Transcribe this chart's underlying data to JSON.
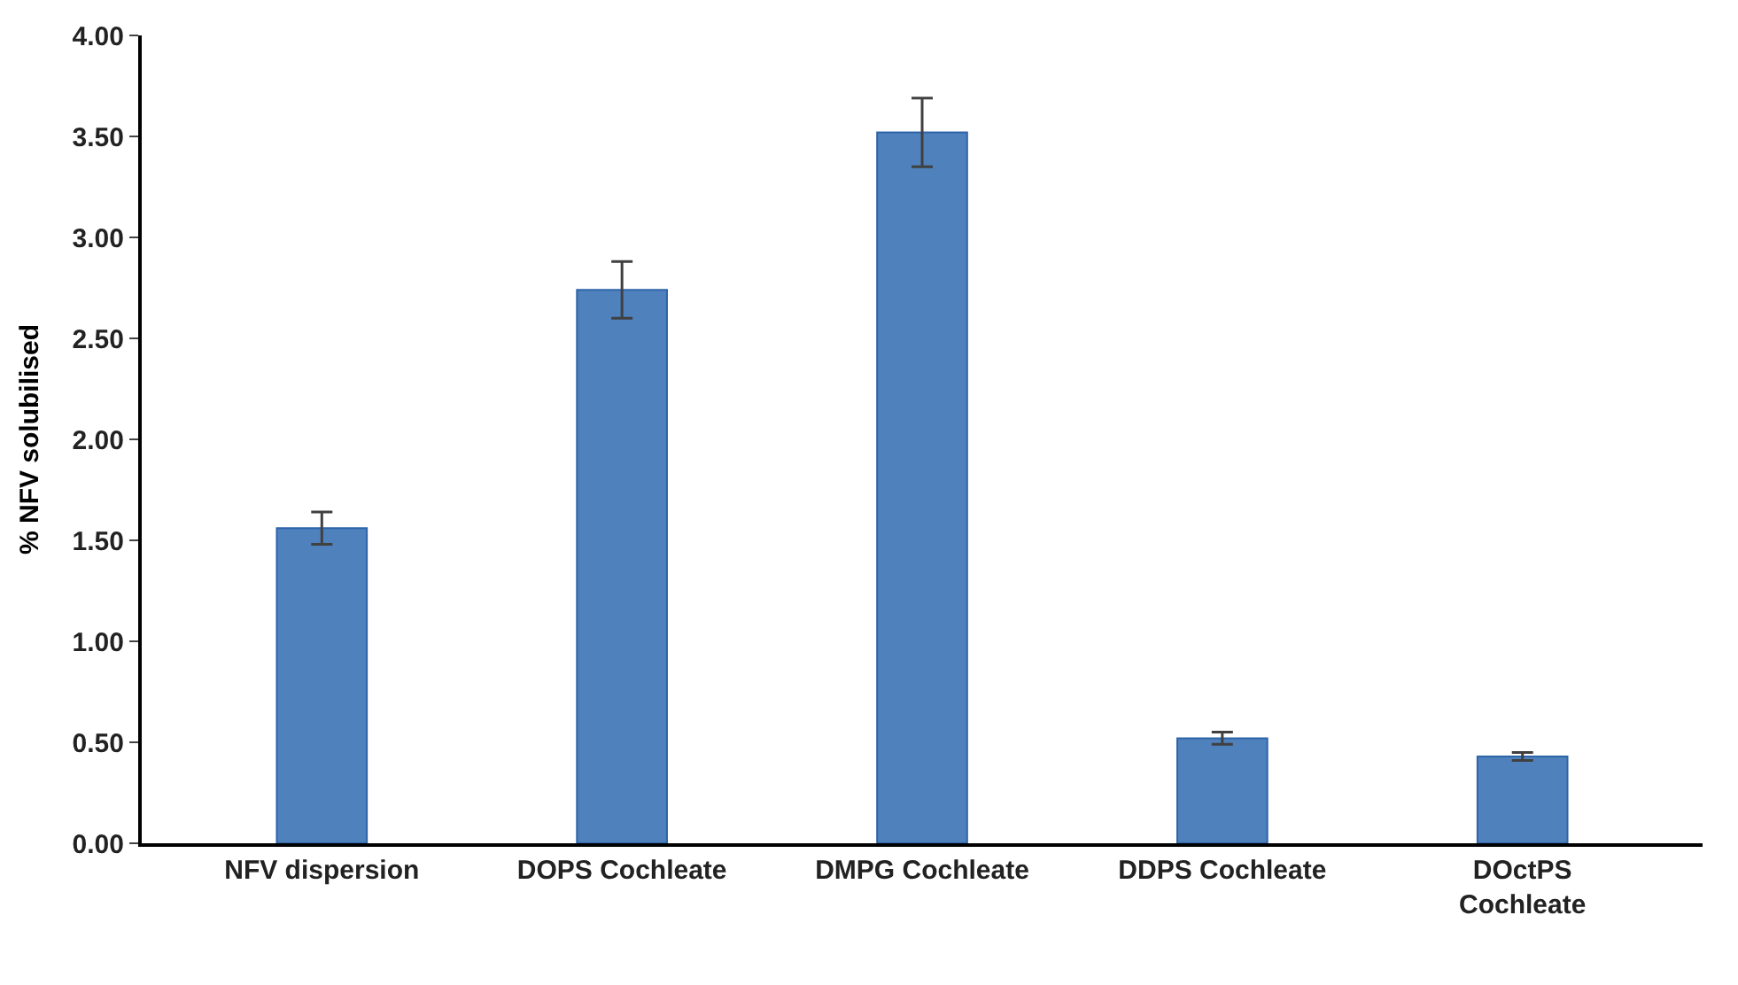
{
  "chart_data": {
    "type": "bar",
    "ylabel": "% NFV solubilised",
    "categories": [
      "NFV dispersion",
      "DOPS Cochleate",
      "DMPG Cochleate",
      "DDPS Cochleate",
      "DOctPS Cochleate"
    ],
    "values": [
      1.56,
      2.74,
      3.52,
      0.52,
      0.43
    ],
    "errors": [
      0.08,
      0.14,
      0.17,
      0.03,
      0.02
    ],
    "color": "#4f81bd",
    "ylim": [
      0,
      4
    ],
    "yticks": [
      {
        "value": 0,
        "label": "0.00"
      },
      {
        "value": 0.5,
        "label": "0.50"
      },
      {
        "value": 1,
        "label": "1.00"
      },
      {
        "value": 1.5,
        "label": "1.50"
      },
      {
        "value": 2,
        "label": "2.00"
      },
      {
        "value": 2.5,
        "label": "2.50"
      },
      {
        "value": 3,
        "label": "3.00"
      },
      {
        "value": 3.5,
        "label": "3.50"
      },
      {
        "value": 4,
        "label": "4.00"
      }
    ],
    "legend": false
  }
}
